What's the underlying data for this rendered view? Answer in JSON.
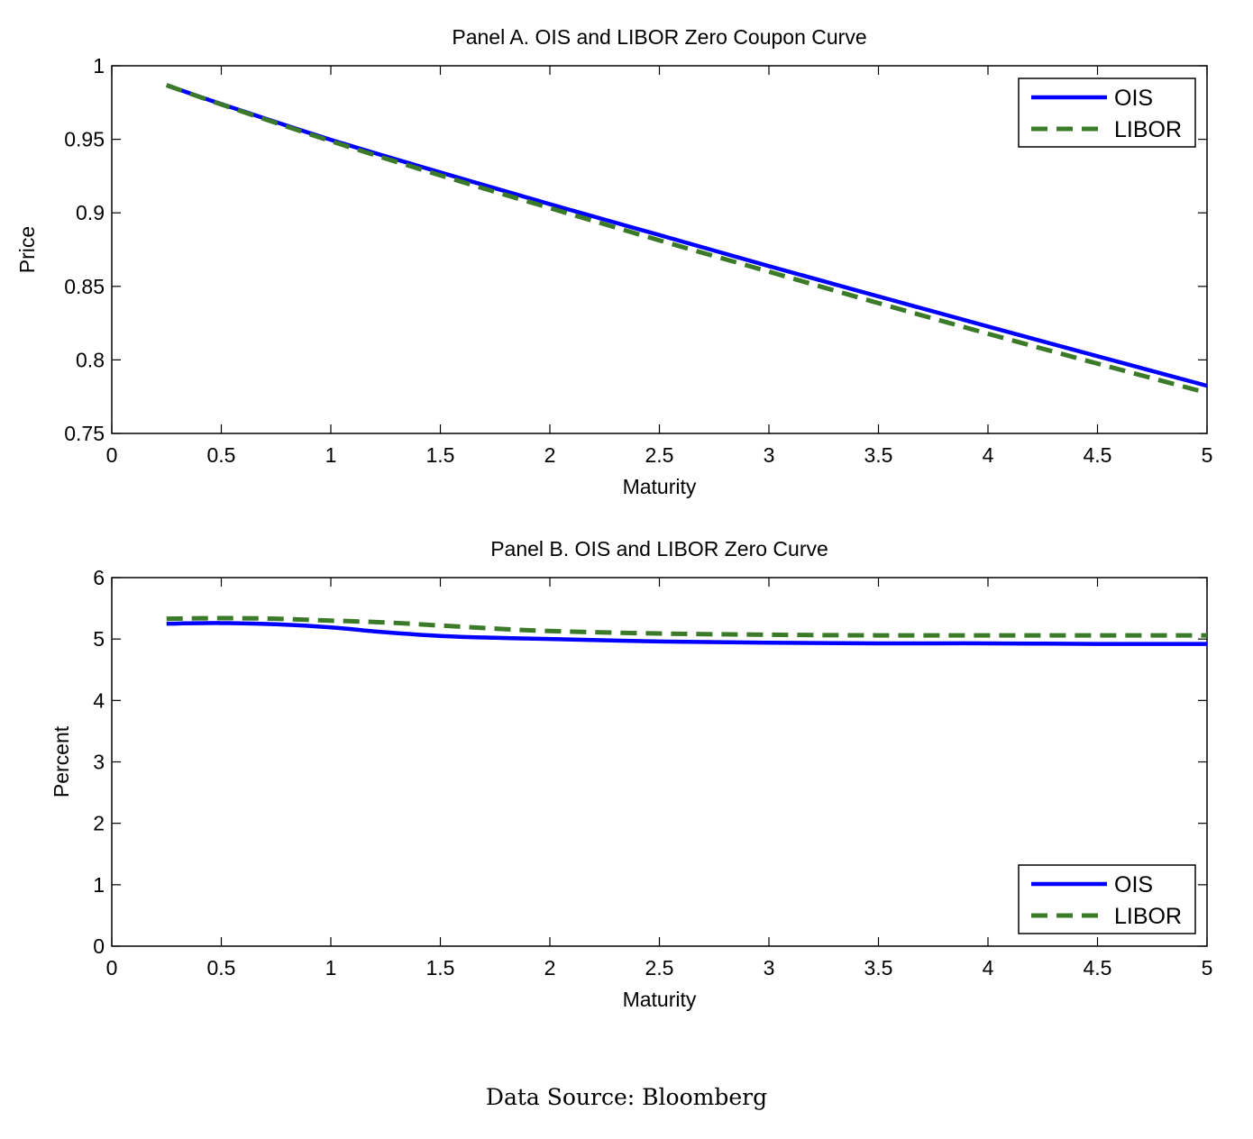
{
  "colors": {
    "ois": "#0000ff",
    "libor": "#3a7a28",
    "axis": "#000000",
    "background": "#ffffff"
  },
  "chart_data": [
    {
      "type": "line",
      "title": "Panel A. OIS and LIBOR Zero Coupon Curve",
      "xlabel": "Maturity",
      "ylabel": "Price",
      "xlim": [
        0,
        5
      ],
      "ylim": [
        0.75,
        1
      ],
      "xticks": [
        "0",
        "0.5",
        "1",
        "1.5",
        "2",
        "2.5",
        "3",
        "3.5",
        "4",
        "4.5",
        "5"
      ],
      "yticks": [
        "0.75",
        "0.8",
        "0.85",
        "0.9",
        "0.95",
        "1"
      ],
      "grid": false,
      "legend": {
        "position": "top-right",
        "entries": [
          "OIS",
          "LIBOR"
        ]
      },
      "series": [
        {
          "name": "OIS",
          "style": "solid",
          "x": [
            0.25,
            0.5,
            1,
            1.5,
            2,
            2.5,
            3,
            3.5,
            4,
            4.5,
            5
          ],
          "y": [
            0.9868,
            0.974,
            0.9497,
            0.9275,
            0.9059,
            0.8849,
            0.8638,
            0.8432,
            0.8227,
            0.8025,
            0.7824
          ]
        },
        {
          "name": "LIBOR",
          "style": "dashed",
          "x": [
            0.25,
            0.5,
            1,
            1.5,
            2,
            2.5,
            3,
            3.5,
            4,
            4.5,
            5
          ],
          "y": [
            0.9868,
            0.9737,
            0.9488,
            0.9255,
            0.9033,
            0.8813,
            0.86,
            0.8386,
            0.8178,
            0.7975,
            0.7776
          ]
        }
      ]
    },
    {
      "type": "line",
      "title": "Panel B. OIS and LIBOR Zero Curve",
      "xlabel": "Maturity",
      "ylabel": "Percent",
      "xlim": [
        0,
        5
      ],
      "ylim": [
        0,
        6
      ],
      "xticks": [
        "0",
        "0.5",
        "1",
        "1.5",
        "2",
        "2.5",
        "3",
        "3.5",
        "4",
        "4.5",
        "5"
      ],
      "yticks": [
        "0",
        "1",
        "2",
        "3",
        "4",
        "5",
        "6"
      ],
      "grid": false,
      "legend": {
        "position": "bottom-right",
        "entries": [
          "OIS",
          "LIBOR"
        ]
      },
      "series": [
        {
          "name": "OIS",
          "style": "solid",
          "x": [
            0.25,
            0.5,
            0.75,
            1,
            1.25,
            1.5,
            1.75,
            2,
            2.5,
            3,
            3.5,
            4,
            4.5,
            5
          ],
          "y": [
            5.25,
            5.26,
            5.24,
            5.19,
            5.11,
            5.05,
            5.02,
            5.0,
            4.96,
            4.94,
            4.93,
            4.93,
            4.92,
            4.92
          ]
        },
        {
          "name": "LIBOR",
          "style": "dashed",
          "x": [
            0.25,
            0.5,
            0.75,
            1,
            1.25,
            1.5,
            1.75,
            2,
            2.5,
            3,
            3.5,
            4,
            4.5,
            5
          ],
          "y": [
            5.33,
            5.34,
            5.33,
            5.3,
            5.27,
            5.22,
            5.17,
            5.13,
            5.09,
            5.07,
            5.06,
            5.06,
            5.06,
            5.06
          ]
        }
      ]
    }
  ],
  "caption": "Data Source:  Bloomberg"
}
